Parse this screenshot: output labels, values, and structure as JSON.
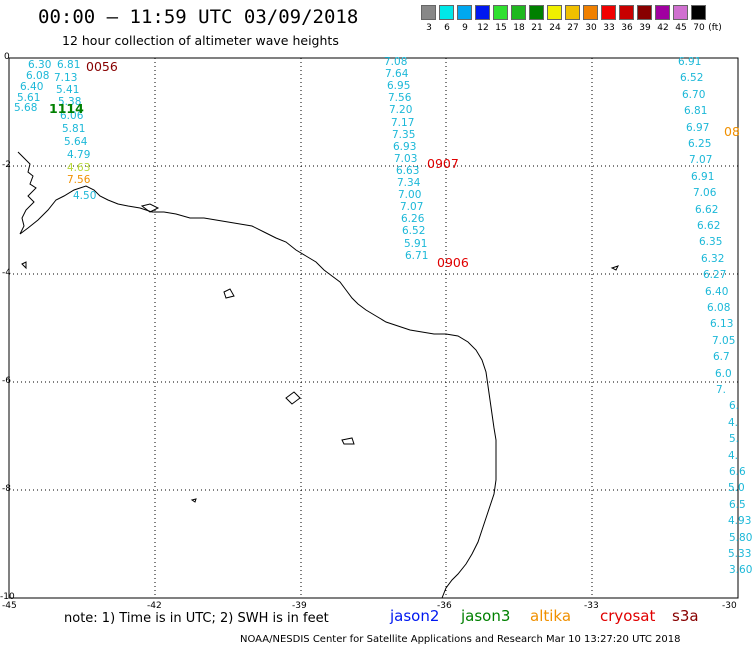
{
  "header": {
    "title": "00:00 – 11:59 UTC 03/09/2018",
    "subtitle": "12 hour collection of altimeter wave heights"
  },
  "legend": {
    "unit": "(ft)",
    "items": [
      {
        "label": "3",
        "color": "#888888"
      },
      {
        "label": "6",
        "color": "#00e8e8"
      },
      {
        "label": "9",
        "color": "#00a8f0"
      },
      {
        "label": "12",
        "color": "#0018f0"
      },
      {
        "label": "15",
        "color": "#30e030"
      },
      {
        "label": "18",
        "color": "#20b820"
      },
      {
        "label": "21",
        "color": "#008000"
      },
      {
        "label": "24",
        "color": "#f0f000"
      },
      {
        "label": "27",
        "color": "#f0c000"
      },
      {
        "label": "30",
        "color": "#f08000"
      },
      {
        "label": "33",
        "color": "#f00000"
      },
      {
        "label": "36",
        "color": "#c80000"
      },
      {
        "label": "39",
        "color": "#880000"
      },
      {
        "label": "42",
        "color": "#a000a0"
      },
      {
        "label": "45",
        "color": "#d070d0"
      },
      {
        "label": "70",
        "color": "#000000"
      }
    ]
  },
  "axes": {
    "x_ticks": [
      "-45",
      "-42",
      "-39",
      "-36",
      "-33",
      "-30"
    ],
    "y_ticks": [
      "0",
      "-2",
      "-4",
      "-6",
      "-8",
      "-10"
    ]
  },
  "tracks": [
    {
      "name": "track-west",
      "values": [
        "6.30",
        "6.81",
        "6.08",
        "7.13",
        "6.40",
        "5.41",
        "5.61",
        "5.38",
        "5.68",
        "6.06",
        "5.81",
        "5.64",
        "4.79",
        "4.63",
        "7.56",
        "4.50"
      ],
      "colors": [
        "#1cb8d8",
        "#1cb8d8",
        "#1cb8d8",
        "#1cb8d8",
        "#1cb8d8",
        "#1cb8d8",
        "#1cb8d8",
        "#1cb8d8",
        "#1cb8d8",
        "#1cb8d8",
        "#1cb8d8",
        "#1cb8d8",
        "#1cb8d8",
        "#b8d838",
        "#f09000",
        "#1cb8d8"
      ]
    },
    {
      "name": "track-middle",
      "values": [
        "7.08",
        "7.64",
        "6.95",
        "7.56",
        "7.20",
        "7.17",
        "7.35",
        "6.93",
        "7.03",
        "6.63",
        "7.34",
        "7.00",
        "7.07",
        "6.26",
        "6.52",
        "5.91",
        "6.71"
      ]
    },
    {
      "name": "track-east",
      "values": [
        "6.91",
        "6.52",
        "6.70",
        "6.81",
        "6.97",
        "6.25",
        "7.07",
        "6.91",
        "7.06",
        "6.62",
        "6.62",
        "6.35",
        "6.32",
        "6.27",
        "6.40",
        "6.08",
        "6.13",
        "7.05",
        "6.7",
        "6.0",
        "7.",
        "6.",
        "4.",
        "5.",
        "4.",
        "6.6",
        "5.0",
        "6.5",
        "4.93",
        "5.80",
        "5.33",
        "3.60"
      ]
    }
  ],
  "time_labels": [
    {
      "text": "0056",
      "color": "#880000"
    },
    {
      "text": "1114",
      "color": "#008000"
    },
    {
      "text": "0907",
      "color": "#e00000"
    },
    {
      "text": "0906",
      "color": "#e00000"
    },
    {
      "text": "08",
      "color": "#f09000"
    }
  ],
  "satellites": [
    {
      "name": "jason2",
      "color": "#0018f0"
    },
    {
      "name": "jason3",
      "color": "#008000"
    },
    {
      "name": "altika",
      "color": "#f09000"
    },
    {
      "name": "cryosat",
      "color": "#e00000"
    },
    {
      "name": "s3a",
      "color": "#880000"
    }
  ],
  "footer": {
    "note": "note: 1) Time is in UTC; 2) SWH is in feet",
    "credit": "NOAA/NESDIS Center for Satellite Applications and Research    Mar 10 13:27:20 UTC 2018"
  }
}
